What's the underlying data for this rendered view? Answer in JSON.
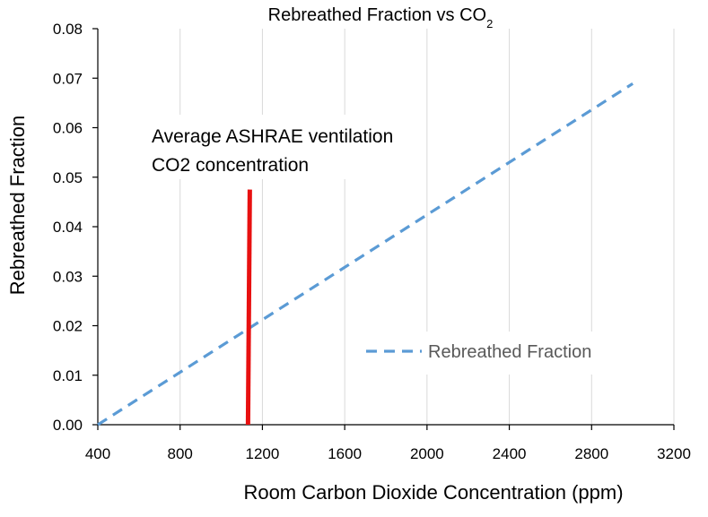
{
  "chart_data": {
    "type": "line",
    "title": "Rebreathed Fraction vs CO",
    "title_subscript": "2",
    "xlabel": "Room Carbon Dioxide Concentration (ppm)",
    "ylabel": "Rebreathed Fraction",
    "xlim": [
      400,
      3200
    ],
    "ylim": [
      0,
      0.08
    ],
    "x_ticks": [
      "400",
      "800",
      "1200",
      "1600",
      "2000",
      "2400",
      "2800",
      "3200"
    ],
    "y_ticks": [
      "0.00",
      "0.01",
      "0.02",
      "0.03",
      "0.04",
      "0.05",
      "0.06",
      "0.07",
      "0.08"
    ],
    "grid": "vertical",
    "legend_position": "bottom-right",
    "series": [
      {
        "name": "Rebreathed Fraction",
        "style": "dashed",
        "color": "#5B9BD5",
        "points": [
          {
            "x": 400,
            "y": 0.0
          },
          {
            "x": 3000,
            "y": 0.0689
          }
        ]
      }
    ],
    "annotation": {
      "lines": [
        "Average ASHRAE ventilation",
        "CO2 concentration"
      ],
      "marker_x": 1130,
      "marker_y": [
        0.0,
        0.0475
      ],
      "color": "#E81010"
    }
  }
}
